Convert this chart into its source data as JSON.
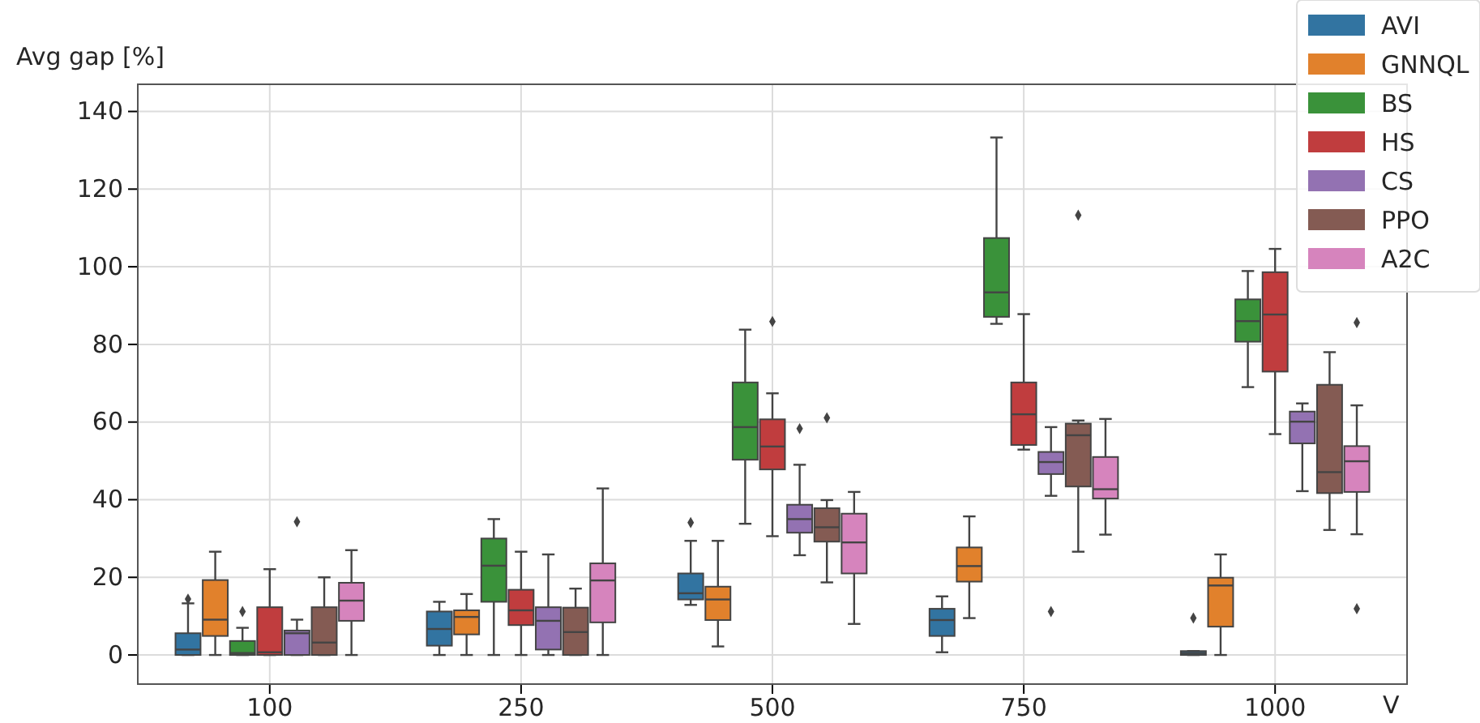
{
  "chart_data": {
    "type": "box",
    "xlabel": "V",
    "ylabel": "Avg gap [%]",
    "categories": [
      "100",
      "250",
      "500",
      "750",
      "1000"
    ],
    "ylim": [
      -7.5,
      147
    ],
    "yticks": [
      0,
      20,
      40,
      60,
      80,
      100,
      120,
      140
    ],
    "grid": true,
    "legend": "top right",
    "series": [
      {
        "name": "AVI",
        "color": "#3274a1",
        "boxes": [
          {
            "low": 0,
            "q1": 0,
            "median": 1.4,
            "q3": 5.6,
            "high": 13.3,
            "outliers": [
              14.4
            ]
          },
          {
            "low": 0,
            "q1": 2.4,
            "median": 6.7,
            "q3": 11.2,
            "high": 13.7
          },
          {
            "low": 12.9,
            "q1": 14.3,
            "median": 15.9,
            "q3": 21,
            "high": 29.4,
            "outliers": [
              34.1
            ]
          },
          {
            "low": 0.7,
            "q1": 4.9,
            "median": 9,
            "q3": 11.9,
            "high": 15.1
          },
          {
            "low": 0,
            "q1": 0,
            "median": 0.5,
            "q3": 1,
            "high": 1,
            "outliers": [
              9.5
            ]
          }
        ]
      },
      {
        "name": "GNNQL",
        "color": "#e1812c",
        "boxes": [
          {
            "low": 0,
            "q1": 4.9,
            "median": 9.1,
            "q3": 19.3,
            "high": 26.6
          },
          {
            "low": 0,
            "q1": 5.3,
            "median": 9.8,
            "q3": 11.5,
            "high": 15.7
          },
          {
            "low": 2.2,
            "q1": 9,
            "median": 14.3,
            "q3": 17.6,
            "high": 29.4
          },
          {
            "low": 9.5,
            "q1": 18.9,
            "median": 22.9,
            "q3": 27.7,
            "high": 35.7
          },
          {
            "low": 0,
            "q1": 7.3,
            "median": 17.9,
            "q3": 19.9,
            "high": 25.9
          }
        ]
      },
      {
        "name": "BS",
        "color": "#3a923a",
        "boxes": [
          {
            "low": 0,
            "q1": 0,
            "median": 0.5,
            "q3": 3.6,
            "high": 7,
            "outliers": [
              11.2
            ]
          },
          {
            "low": 0,
            "q1": 13.7,
            "median": 23,
            "q3": 30,
            "high": 35
          },
          {
            "low": 33.8,
            "q1": 50.3,
            "median": 58.7,
            "q3": 70.2,
            "high": 83.8
          },
          {
            "low": 85.3,
            "q1": 87.1,
            "median": 93.4,
            "q3": 107.4,
            "high": 133.3
          },
          {
            "low": 69,
            "q1": 80.7,
            "median": 86,
            "q3": 91.6,
            "high": 98.9
          }
        ]
      },
      {
        "name": "HS",
        "color": "#c03d3e",
        "boxes": [
          {
            "low": 0,
            "q1": 0,
            "median": 0.7,
            "q3": 12.3,
            "high": 22.1
          },
          {
            "low": 0,
            "q1": 7.7,
            "median": 11.5,
            "q3": 16.8,
            "high": 26.6
          },
          {
            "low": 30.6,
            "q1": 47.8,
            "median": 53.7,
            "q3": 60.7,
            "high": 67.4,
            "outliers": [
              85.9
            ]
          },
          {
            "low": 52.9,
            "q1": 54.1,
            "median": 62,
            "q3": 70.2,
            "high": 87.8
          },
          {
            "low": 56.9,
            "q1": 73,
            "median": 87.7,
            "q3": 98.6,
            "high": 104.6
          }
        ]
      },
      {
        "name": "CS",
        "color": "#9372b2",
        "boxes": [
          {
            "low": 0,
            "q1": 0,
            "median": 5.6,
            "q3": 6.3,
            "high": 9.1,
            "outliers": [
              34.3
            ]
          },
          {
            "low": 0,
            "q1": 1.4,
            "median": 8.8,
            "q3": 12.3,
            "high": 25.9
          },
          {
            "low": 25.7,
            "q1": 31.5,
            "median": 35,
            "q3": 38.7,
            "high": 49,
            "outliers": [
              58.3
            ]
          },
          {
            "low": 41,
            "q1": 46.6,
            "median": 49.7,
            "q3": 52.3,
            "high": 58.7,
            "outliers": [
              11.2
            ]
          },
          {
            "low": 42.2,
            "q1": 54.5,
            "median": 60.1,
            "q3": 62.7,
            "high": 64.8
          }
        ]
      },
      {
        "name": "PPO",
        "color": "#845b53",
        "boxes": [
          {
            "low": 0,
            "q1": 0,
            "median": 3.2,
            "q3": 12.3,
            "high": 20
          },
          {
            "low": 0,
            "q1": 0,
            "median": 5.9,
            "q3": 12.2,
            "high": 17.1
          },
          {
            "low": 18.7,
            "q1": 29.2,
            "median": 32.9,
            "q3": 37.8,
            "high": 39.9,
            "outliers": [
              61.1
            ]
          },
          {
            "low": 26.6,
            "q1": 43.4,
            "median": 56.6,
            "q3": 59.6,
            "high": 60.4,
            "outliers": [
              113.3
            ]
          },
          {
            "low": 32.2,
            "q1": 41.7,
            "median": 47.1,
            "q3": 69.6,
            "high": 78
          }
        ]
      },
      {
        "name": "A2C",
        "color": "#d684bd",
        "boxes": [
          {
            "low": 0,
            "q1": 8.8,
            "median": 14,
            "q3": 18.6,
            "high": 27
          },
          {
            "low": 0,
            "q1": 8.4,
            "median": 19.2,
            "q3": 23.6,
            "high": 42.9
          },
          {
            "low": 8,
            "q1": 21,
            "median": 29,
            "q3": 36.4,
            "high": 42
          },
          {
            "low": 31,
            "q1": 40.3,
            "median": 42.7,
            "q3": 51,
            "high": 60.8
          },
          {
            "low": 31.1,
            "q1": 42,
            "median": 49.9,
            "q3": 53.8,
            "high": 64.3,
            "outliers": [
              85.6,
              11.9
            ]
          }
        ]
      }
    ]
  }
}
